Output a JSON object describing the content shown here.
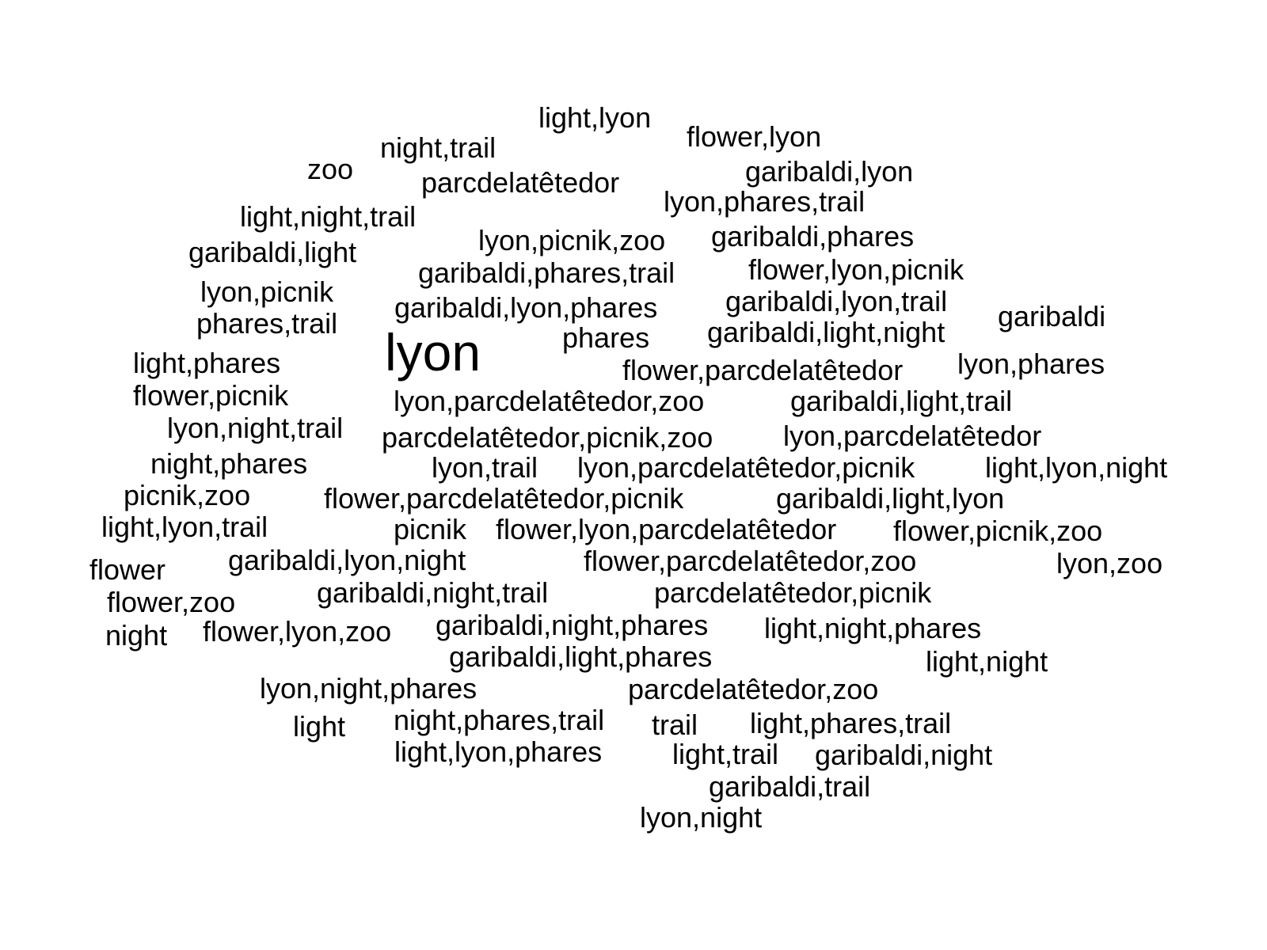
{
  "words": [
    "light,lyon",
    "flower,lyon",
    "night,trail",
    "zoo",
    "garibaldi,lyon",
    "parcdelatêtedor",
    "lyon,phares,trail",
    "light,night,trail",
    "lyon,picnik,zoo",
    "garibaldi,phares",
    "garibaldi,light",
    "garibaldi,phares,trail",
    "flower,lyon,picnik",
    "lyon,picnik",
    "garibaldi,lyon,trail",
    "garibaldi,lyon,phares",
    "garibaldi",
    "phares,trail",
    "phares",
    "garibaldi,light,night",
    "lyon",
    "light,phares",
    "lyon,phares",
    "flower,parcdelatêtedor",
    "flower,picnik",
    "lyon,parcdelatêtedor,zoo",
    "garibaldi,light,trail",
    "lyon,night,trail",
    "parcdelatêtedor,picnik,zoo",
    "lyon,parcdelatêtedor",
    "night,phares",
    "lyon,trail",
    "lyon,parcdelatêtedor,picnik",
    "light,lyon,night",
    "picnik,zoo",
    "flower,parcdelatêtedor,picnik",
    "garibaldi,light,lyon",
    "light,lyon,trail",
    "picnik",
    "flower,lyon,parcdelatêtedor",
    "flower,picnik,zoo",
    "lyon,zoo",
    "flower",
    "garibaldi,lyon,night",
    "flower,parcdelatêtedor,zoo",
    "flower,zoo",
    "garibaldi,night,trail",
    "parcdelatêtedor,picnik",
    "night",
    "flower,lyon,zoo",
    "garibaldi,night,phares",
    "light,night,phares",
    "garibaldi,light,phares",
    "light,night",
    "lyon,night,phares",
    "parcdelatêtedor,zoo",
    "light",
    "night,phares,trail",
    "trail",
    "light,phares,trail",
    "light,lyon,phares",
    "light,trail",
    "garibaldi,night",
    "garibaldi,trail",
    "lyon,night"
  ]
}
